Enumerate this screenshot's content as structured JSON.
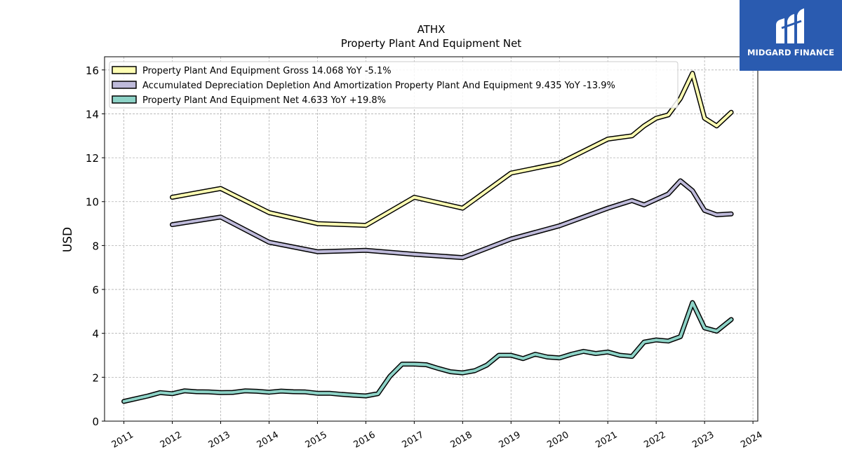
{
  "brand": {
    "name": "MIDGARD FINANCE",
    "color": "#2a5bb0"
  },
  "chart_data": {
    "type": "line",
    "title": "ATHX",
    "subtitle": "Property Plant And Equipment Net",
    "xlabel": "",
    "ylabel": "USD",
    "ylim": [
      0,
      16.6
    ],
    "xlim": [
      2010.6,
      2024.1
    ],
    "yticks": [
      0,
      2,
      4,
      6,
      8,
      10,
      12,
      14,
      16
    ],
    "xticks": [
      "2011",
      "2012",
      "2013",
      "2014",
      "2015",
      "2016",
      "2017",
      "2018",
      "2019",
      "2020",
      "2021",
      "2022",
      "2023",
      "2024"
    ],
    "grid": true,
    "legend_position": "top-left",
    "series": [
      {
        "name": "Property Plant And Equipment Gross  14.068 YoY -5.1%",
        "color": "#ffffb3",
        "points": [
          [
            2012.0,
            10.2
          ],
          [
            2013.0,
            10.6
          ],
          [
            2014.0,
            9.5
          ],
          [
            2015.0,
            9.0
          ],
          [
            2016.0,
            8.92
          ],
          [
            2017.0,
            10.2
          ],
          [
            2018.0,
            9.7
          ],
          [
            2019.0,
            11.3
          ],
          [
            2020.0,
            11.75
          ],
          [
            2021.0,
            12.85
          ],
          [
            2021.5,
            13.0
          ],
          [
            2021.75,
            13.45
          ],
          [
            2022.0,
            13.8
          ],
          [
            2022.25,
            13.95
          ],
          [
            2022.5,
            14.7
          ],
          [
            2022.75,
            15.85
          ],
          [
            2023.0,
            13.8
          ],
          [
            2023.25,
            13.45
          ],
          [
            2023.55,
            14.07
          ]
        ]
      },
      {
        "name": "Accumulated Depreciation Depletion And Amortization Property Plant And Equipment  9.435 YoY -13.9%",
        "color": "#bebada",
        "points": [
          [
            2012.0,
            8.95
          ],
          [
            2013.0,
            9.3
          ],
          [
            2014.0,
            8.15
          ],
          [
            2015.0,
            7.72
          ],
          [
            2016.0,
            7.78
          ],
          [
            2017.0,
            7.6
          ],
          [
            2018.0,
            7.45
          ],
          [
            2019.0,
            8.3
          ],
          [
            2020.0,
            8.9
          ],
          [
            2021.0,
            9.7
          ],
          [
            2021.5,
            10.05
          ],
          [
            2021.75,
            9.85
          ],
          [
            2022.0,
            10.1
          ],
          [
            2022.25,
            10.35
          ],
          [
            2022.5,
            10.95
          ],
          [
            2022.75,
            10.5
          ],
          [
            2023.0,
            9.6
          ],
          [
            2023.25,
            9.4
          ],
          [
            2023.55,
            9.44
          ]
        ]
      },
      {
        "name": "Property Plant And Equipment Net  4.633 YoY +19.8%",
        "color": "#8dd3c7",
        "points": [
          [
            2011.0,
            0.9
          ],
          [
            2011.5,
            1.15
          ],
          [
            2011.75,
            1.3
          ],
          [
            2012.0,
            1.25
          ],
          [
            2012.25,
            1.38
          ],
          [
            2012.5,
            1.34
          ],
          [
            2012.75,
            1.33
          ],
          [
            2013.0,
            1.3
          ],
          [
            2013.25,
            1.31
          ],
          [
            2013.5,
            1.38
          ],
          [
            2013.75,
            1.36
          ],
          [
            2014.0,
            1.32
          ],
          [
            2014.25,
            1.37
          ],
          [
            2014.5,
            1.34
          ],
          [
            2014.75,
            1.33
          ],
          [
            2015.0,
            1.27
          ],
          [
            2015.25,
            1.27
          ],
          [
            2015.5,
            1.22
          ],
          [
            2015.75,
            1.18
          ],
          [
            2016.0,
            1.15
          ],
          [
            2016.25,
            1.25
          ],
          [
            2016.5,
            2.05
          ],
          [
            2016.75,
            2.6
          ],
          [
            2017.0,
            2.6
          ],
          [
            2017.25,
            2.57
          ],
          [
            2017.5,
            2.4
          ],
          [
            2017.75,
            2.25
          ],
          [
            2018.0,
            2.2
          ],
          [
            2018.25,
            2.3
          ],
          [
            2018.5,
            2.55
          ],
          [
            2018.75,
            3.0
          ],
          [
            2019.0,
            3.0
          ],
          [
            2019.25,
            2.85
          ],
          [
            2019.5,
            3.05
          ],
          [
            2019.75,
            2.92
          ],
          [
            2020.0,
            2.88
          ],
          [
            2020.25,
            3.05
          ],
          [
            2020.5,
            3.18
          ],
          [
            2020.75,
            3.08
          ],
          [
            2021.0,
            3.15
          ],
          [
            2021.25,
            3.0
          ],
          [
            2021.5,
            2.95
          ],
          [
            2021.75,
            3.6
          ],
          [
            2022.0,
            3.7
          ],
          [
            2022.25,
            3.65
          ],
          [
            2022.5,
            3.85
          ],
          [
            2022.75,
            5.4
          ],
          [
            2023.0,
            4.25
          ],
          [
            2023.25,
            4.1
          ],
          [
            2023.55,
            4.63
          ]
        ]
      }
    ]
  }
}
